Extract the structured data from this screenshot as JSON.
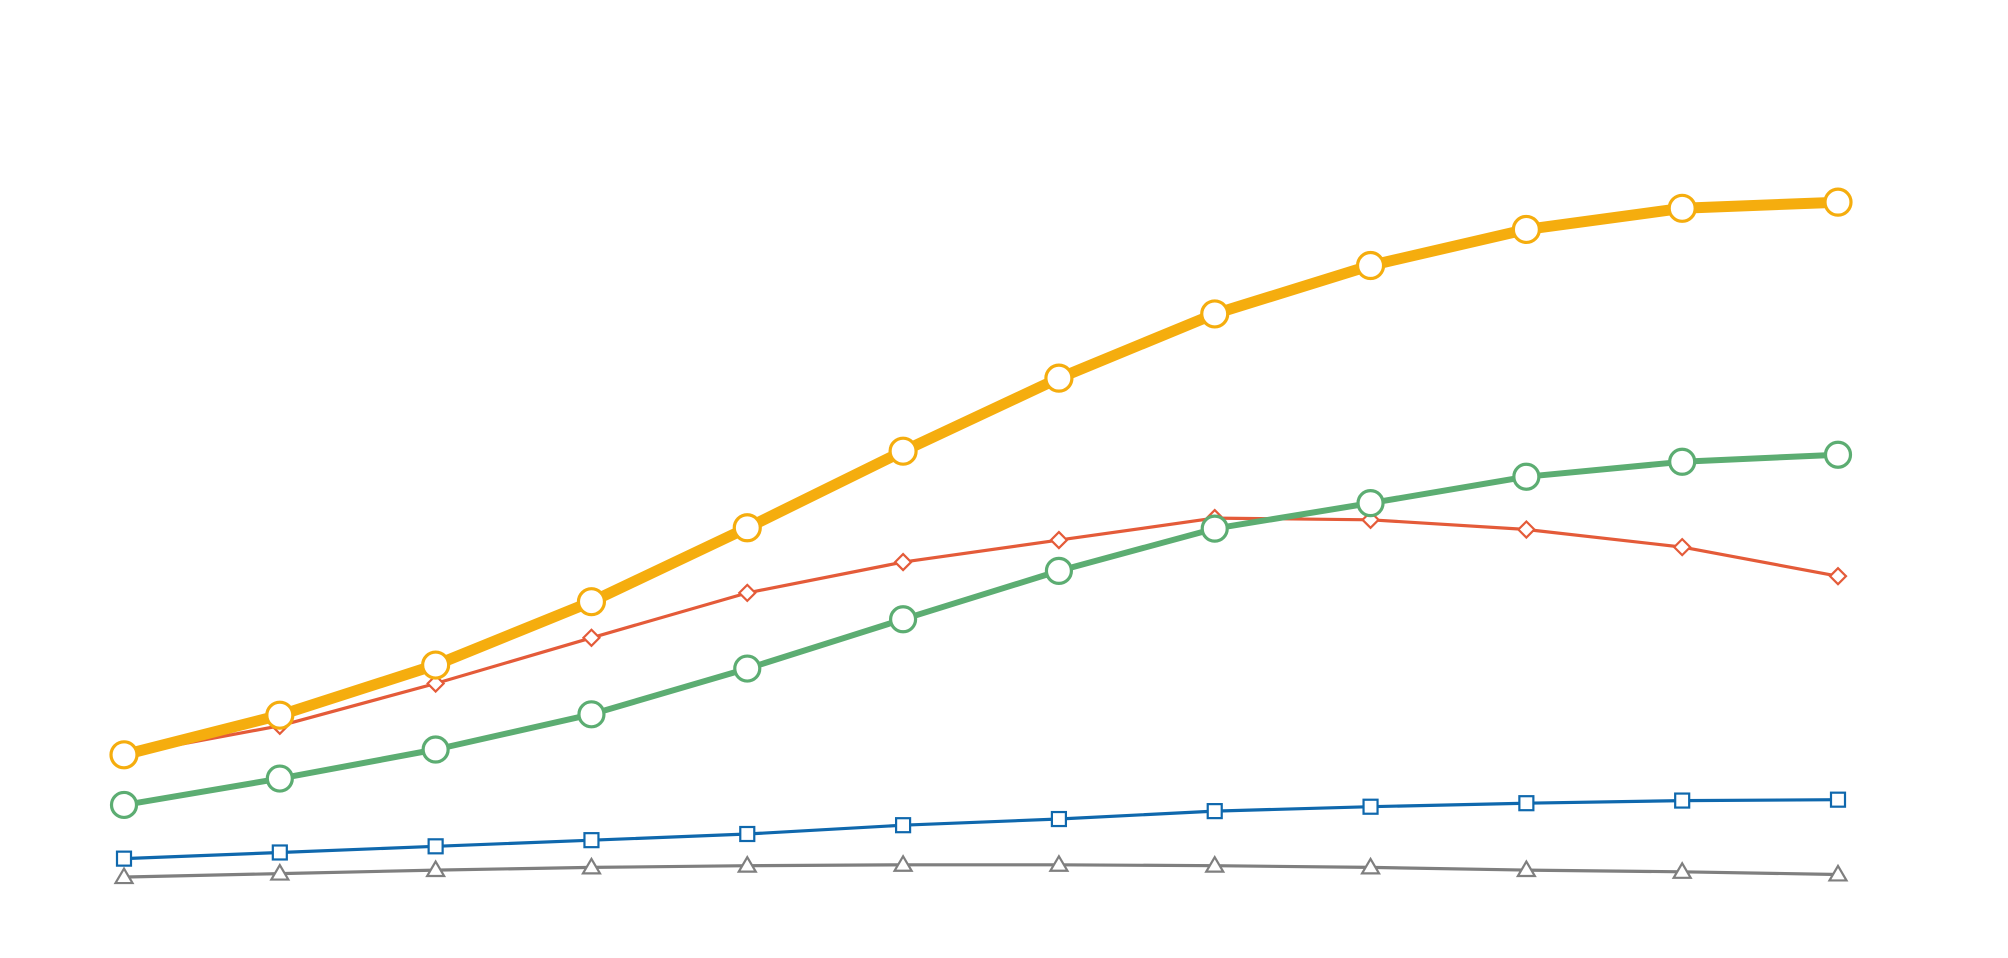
{
  "chart_data": {
    "type": "line",
    "title": "",
    "xlabel": "",
    "ylabel": "",
    "x": [
      1,
      2,
      3,
      4,
      5,
      6,
      7,
      8,
      9,
      10,
      11,
      12
    ],
    "ylim": [
      0,
      100
    ],
    "grid": false,
    "legend": "none",
    "series": [
      {
        "color": "#F5AD0E",
        "marker": "circle",
        "line_width": "thick",
        "values": [
          16.5,
          21.0,
          26.7,
          33.9,
          42.3,
          51.0,
          59.3,
          66.6,
          72.1,
          76.2,
          78.6,
          79.3
        ]
      },
      {
        "color": "#E45B39",
        "marker": "diamond",
        "line_width": "thin",
        "values": [
          16.5,
          19.8,
          24.6,
          29.8,
          34.9,
          38.4,
          40.9,
          43.4,
          43.2,
          42.1,
          40.1,
          36.8
        ]
      },
      {
        "color": "#5CAD72",
        "marker": "circle",
        "line_width": "medium",
        "values": [
          10.8,
          13.8,
          17.1,
          21.1,
          26.3,
          31.9,
          37.4,
          42.2,
          45.1,
          48.1,
          49.8,
          50.6
        ]
      },
      {
        "color": "#0F68AD",
        "marker": "square",
        "line_width": "thin",
        "values": [
          4.7,
          5.4,
          6.1,
          6.8,
          7.5,
          8.5,
          9.2,
          10.1,
          10.6,
          11.0,
          11.3,
          11.4
        ]
      },
      {
        "color": "#7F7F7F",
        "marker": "triangle",
        "line_width": "thin",
        "values": [
          2.6,
          3.0,
          3.4,
          3.7,
          3.9,
          4.0,
          4.0,
          3.9,
          3.7,
          3.4,
          3.2,
          2.9
        ]
      }
    ]
  }
}
